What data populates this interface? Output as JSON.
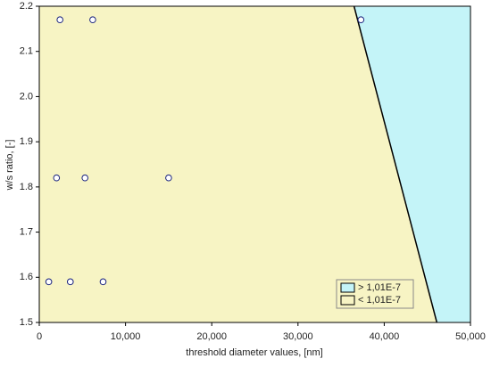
{
  "chart_data": {
    "type": "scatter",
    "xlabel": "threshold diameter values, [nm]",
    "ylabel": "w/s ratio, [-]",
    "xlim": [
      0,
      50000
    ],
    "ylim": [
      1.5,
      2.2
    ],
    "xticks": [
      0,
      {
        "value": 10000,
        "label": "10,000"
      },
      {
        "value": 20000,
        "label": "20,000"
      },
      {
        "value": 30000,
        "label": "30,000"
      },
      {
        "value": 40000,
        "label": "40,000"
      },
      {
        "value": 50000,
        "label": "50,000"
      }
    ],
    "yticks": [
      1.5,
      1.6,
      1.7,
      1.8,
      1.9,
      {
        "value": 2,
        "label": "2.0"
      },
      2.1,
      2.2
    ],
    "boundary": {
      "x": [
        36500,
        46100
      ],
      "y": [
        2.2,
        1.5
      ],
      "color": "#000000"
    },
    "regions": [
      {
        "name": "> 1,01E-7",
        "color": "#c4f4f8"
      },
      {
        "name": "< 1,01E-7",
        "color": "#f7f4c4"
      }
    ],
    "series": [
      {
        "color": "#1a237e",
        "x": [
          2400,
          6200,
          37300,
          2000,
          5300,
          15000,
          1100,
          3600,
          7400
        ],
        "values": [
          2.17,
          2.17,
          2.17,
          1.82,
          1.82,
          1.82,
          1.59,
          1.59,
          1.59
        ]
      }
    ],
    "legend": "lower right"
  }
}
